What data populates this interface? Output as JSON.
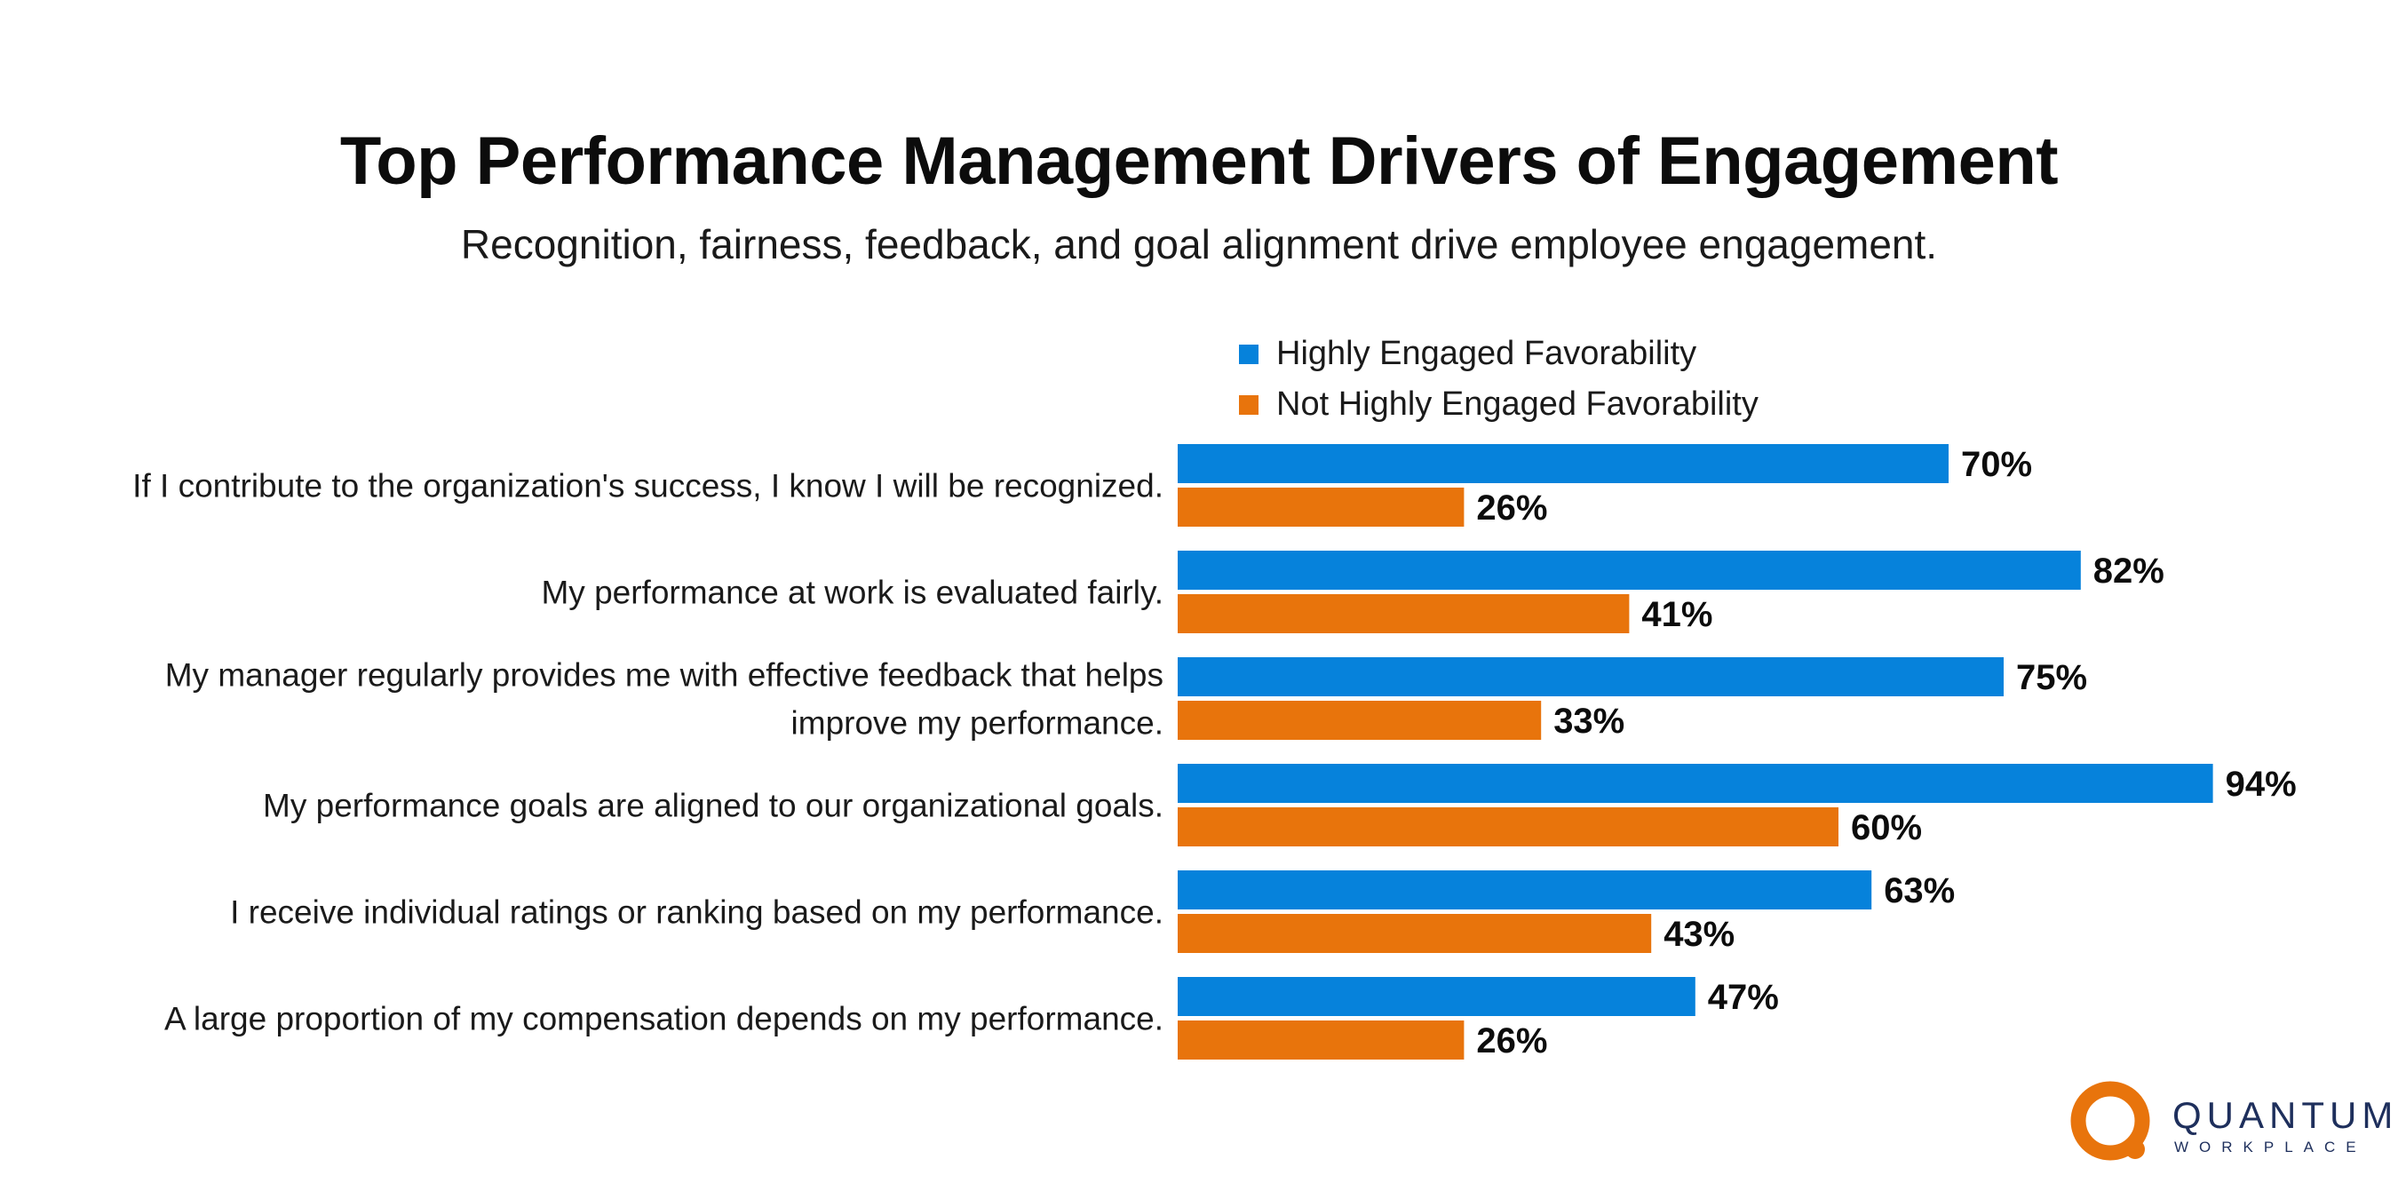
{
  "header": {
    "title": "Top Performance Management Drivers of Engagement",
    "subtitle": "Recognition, fairness, feedback, and goal alignment drive employee engagement."
  },
  "legend": {
    "items": [
      {
        "label": "Highly Engaged Favorability",
        "color": "#0682db"
      },
      {
        "label": "Not Highly Engaged Favorability",
        "color": "#e8740c"
      }
    ]
  },
  "chart_data": {
    "type": "bar",
    "orientation": "horizontal",
    "title": "Top Performance Management Drivers of Engagement",
    "subtitle": "Recognition, fairness, feedback, and goal alignment drive employee engagement.",
    "categories": [
      [
        "If I contribute to the organization's success, I know I will be recognized."
      ],
      [
        "My performance at work is evaluated fairly."
      ],
      [
        "My manager regularly provides me with effective feedback that helps",
        "improve my performance."
      ],
      [
        "My performance goals are aligned to our organizational goals."
      ],
      [
        "I receive individual ratings or ranking based on my performance."
      ],
      [
        "A large proportion of my compensation depends on my performance."
      ]
    ],
    "series": [
      {
        "name": "Highly Engaged Favorability",
        "color": "#0682db",
        "values": [
          70,
          82,
          75,
          94,
          63,
          47
        ]
      },
      {
        "name": "Not Highly Engaged Favorability",
        "color": "#e8740c",
        "values": [
          26,
          41,
          33,
          60,
          43,
          26
        ]
      }
    ],
    "value_suffix": "%",
    "xlim": [
      0,
      100
    ],
    "grid": false,
    "legend_position": "top-center"
  },
  "logo": {
    "name": "QUANTUM",
    "tagline": "WORKPLACE",
    "ring_color": "#e8740c",
    "text_color": "#1e2f5c"
  }
}
